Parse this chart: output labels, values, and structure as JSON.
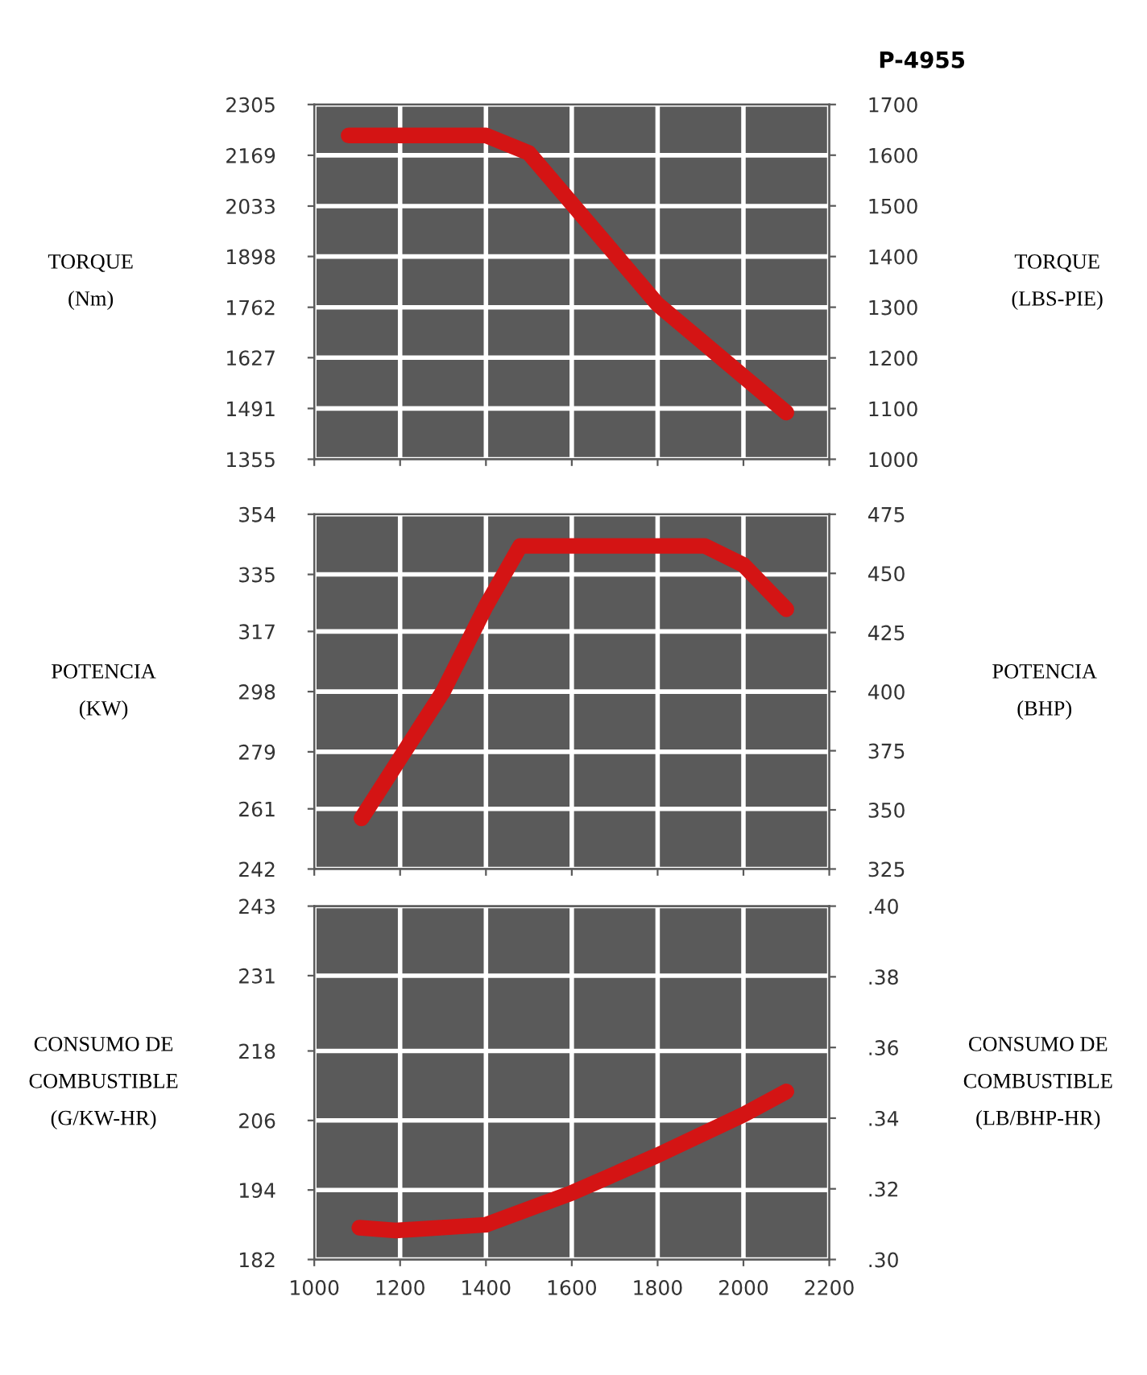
{
  "chart_data": [
    {
      "type": "line",
      "title": "P-4955",
      "ylabel": "TORQUE\n(Nm)",
      "y2label": "TORQUE\n(LBS-PIE)",
      "series": [
        {
          "color": "#d41414",
          "x": [
            1080,
            1400,
            1500,
            1800,
            2100
          ],
          "values": [
            2222,
            2222,
            2175,
            1770,
            1480
          ]
        }
      ],
      "xlim": [
        1000,
        2200
      ],
      "xticks": [
        1000,
        1200,
        1400,
        1600,
        1800,
        2000,
        2200
      ],
      "ylim": [
        1355,
        2305
      ],
      "yticks": [
        1355,
        1491,
        1627,
        1762,
        1898,
        2033,
        2169,
        2305
      ],
      "y2lim": [
        1000,
        1700
      ],
      "y2ticks": [
        1000,
        1100,
        1200,
        1300,
        1400,
        1500,
        1600,
        1700
      ],
      "grid": true,
      "tick_labels": "y",
      "marker": "none",
      "line_style": "solid"
    },
    {
      "type": "line",
      "ylabel": "POTENCIA\n(KW)",
      "y2label": "POTENCIA\n(BHP)",
      "series": [
        {
          "color": "#d41414",
          "x": [
            1110,
            1200,
            1300,
            1400,
            1480,
            1910,
            2000,
            2100
          ],
          "values": [
            258,
            277,
            298,
            325,
            344,
            344,
            338,
            324
          ]
        }
      ],
      "xlim": [
        1000,
        2200
      ],
      "xticks": [
        1000,
        1200,
        1400,
        1600,
        1800,
        2000,
        2200
      ],
      "ylim": [
        242,
        354
      ],
      "yticks": [
        242,
        261,
        279,
        298,
        317,
        335,
        354
      ],
      "y2lim": [
        325,
        475
      ],
      "y2ticks": [
        325,
        350,
        375,
        400,
        425,
        450,
        475
      ],
      "grid": true,
      "tick_labels": "y",
      "marker": "none",
      "line_style": "solid"
    },
    {
      "type": "line",
      "ylabel": "CONSUMO DE\nCOMBUSTIBLE\n(G/KW-HR)",
      "y2label": "CONSUMO DE\nCOMBUSTIBLE\n(LB/BHP-HR)",
      "series": [
        {
          "color": "#d41414",
          "x": [
            1105,
            1190,
            1400,
            1600,
            1800,
            2000,
            2100
          ],
          "values": [
            187.5,
            187,
            188,
            193.5,
            200,
            207,
            211
          ]
        }
      ],
      "xlim": [
        1000,
        2200
      ],
      "xticks": [
        1000,
        1200,
        1400,
        1600,
        1800,
        2000,
        2200
      ],
      "ylim": [
        182,
        243
      ],
      "yticks": [
        182,
        194,
        206,
        218,
        231,
        243
      ],
      "y2lim": [
        0.3,
        0.4
      ],
      "y2ticks": [
        {
          "value": 0.3,
          "label": ".30"
        },
        {
          "value": 0.32,
          "label": ".32"
        },
        {
          "value": 0.34,
          "label": ".34"
        },
        {
          "value": 0.36,
          "label": ".36"
        },
        {
          "value": 0.38,
          "label": ".38"
        },
        {
          "value": 0.4,
          "label": ".40"
        }
      ],
      "grid": true,
      "marker": "none",
      "line_style": "solid"
    }
  ]
}
